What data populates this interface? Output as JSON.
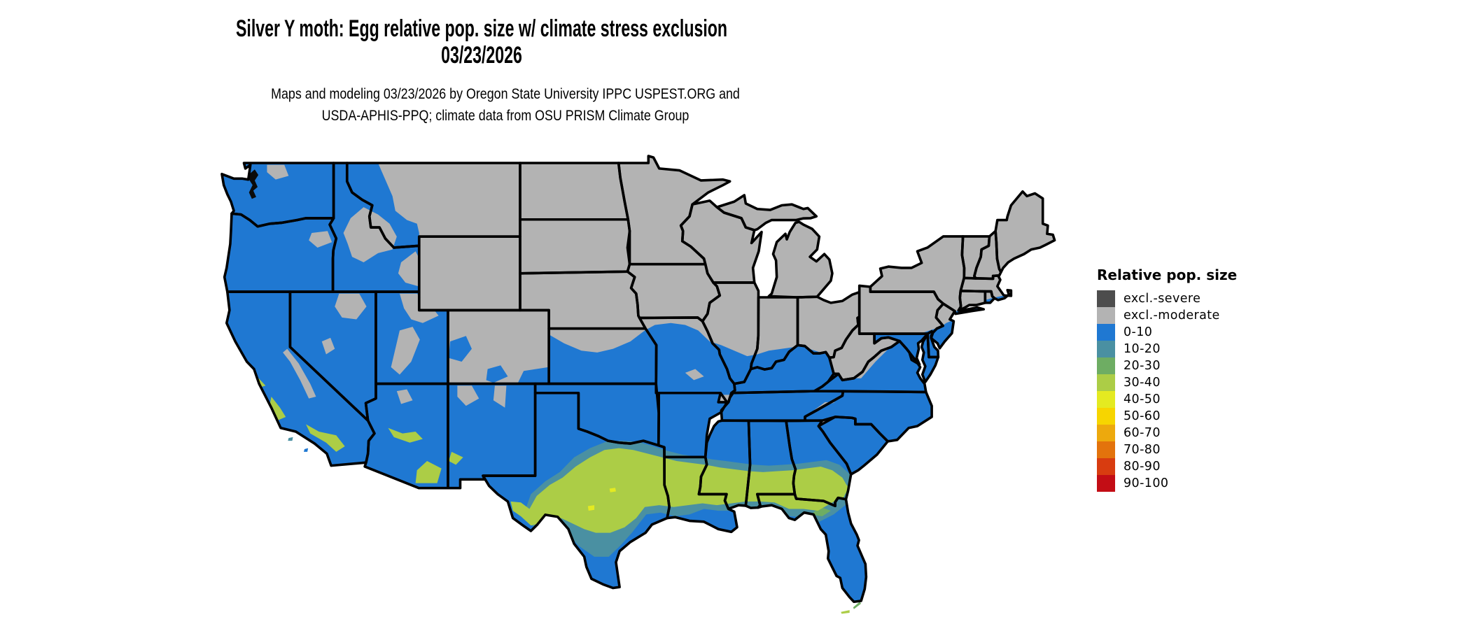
{
  "title": {
    "line1": "Silver Y moth: Egg relative pop. size w/ climate stress exclusion",
    "line2": "03/23/2026"
  },
  "subtitle": {
    "line1": "Maps and modeling 03/23/2026 by Oregon State University IPPC USPEST.ORG and",
    "line2": "USDA-APHIS-PPQ; climate data from OSU PRISM Climate Group"
  },
  "legend": {
    "title": "Relative pop. size",
    "items": [
      {
        "label": "excl.-severe",
        "color": "#4d4d4d"
      },
      {
        "label": "excl.-moderate",
        "color": "#b3b3b3"
      },
      {
        "label": "0-10",
        "color": "#1f78d2"
      },
      {
        "label": "10-20",
        "color": "#4a90a2"
      },
      {
        "label": "20-30",
        "color": "#6ead63"
      },
      {
        "label": "30-40",
        "color": "#accd46"
      },
      {
        "label": "40-50",
        "color": "#e4ea21"
      },
      {
        "label": "50-60",
        "color": "#f7d500"
      },
      {
        "label": "60-70",
        "color": "#eda90d"
      },
      {
        "label": "70-80",
        "color": "#e3730c"
      },
      {
        "label": "80-90",
        "color": "#d83c10"
      },
      {
        "label": "90-100",
        "color": "#c30d15"
      }
    ]
  },
  "map": {
    "region": "Contiguous United States",
    "border_color": "#000000",
    "background": "#ffffff"
  }
}
